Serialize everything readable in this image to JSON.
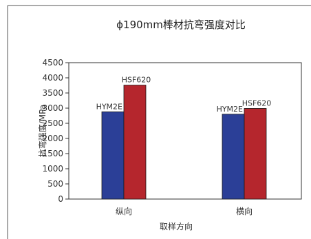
{
  "chart_data": {
    "type": "bar",
    "title": "ϕ190mm棒材抗弯强度对比",
    "xlabel": "取样方向",
    "ylabel": "抗弯强度/MPa",
    "categories": [
      "纵向",
      "横向"
    ],
    "series": [
      {
        "name": "HYM2E",
        "values": [
          2880,
          2800
        ],
        "color": "#2b3f97"
      },
      {
        "name": "HSF620",
        "values": [
          3760,
          2990
        ],
        "color": "#b5262d"
      }
    ],
    "ylim": [
      0,
      4500
    ],
    "yticks": [
      0,
      500,
      1000,
      1500,
      2000,
      2500,
      3000,
      3500,
      4000,
      4500
    ],
    "grid": false,
    "legend": "none"
  }
}
